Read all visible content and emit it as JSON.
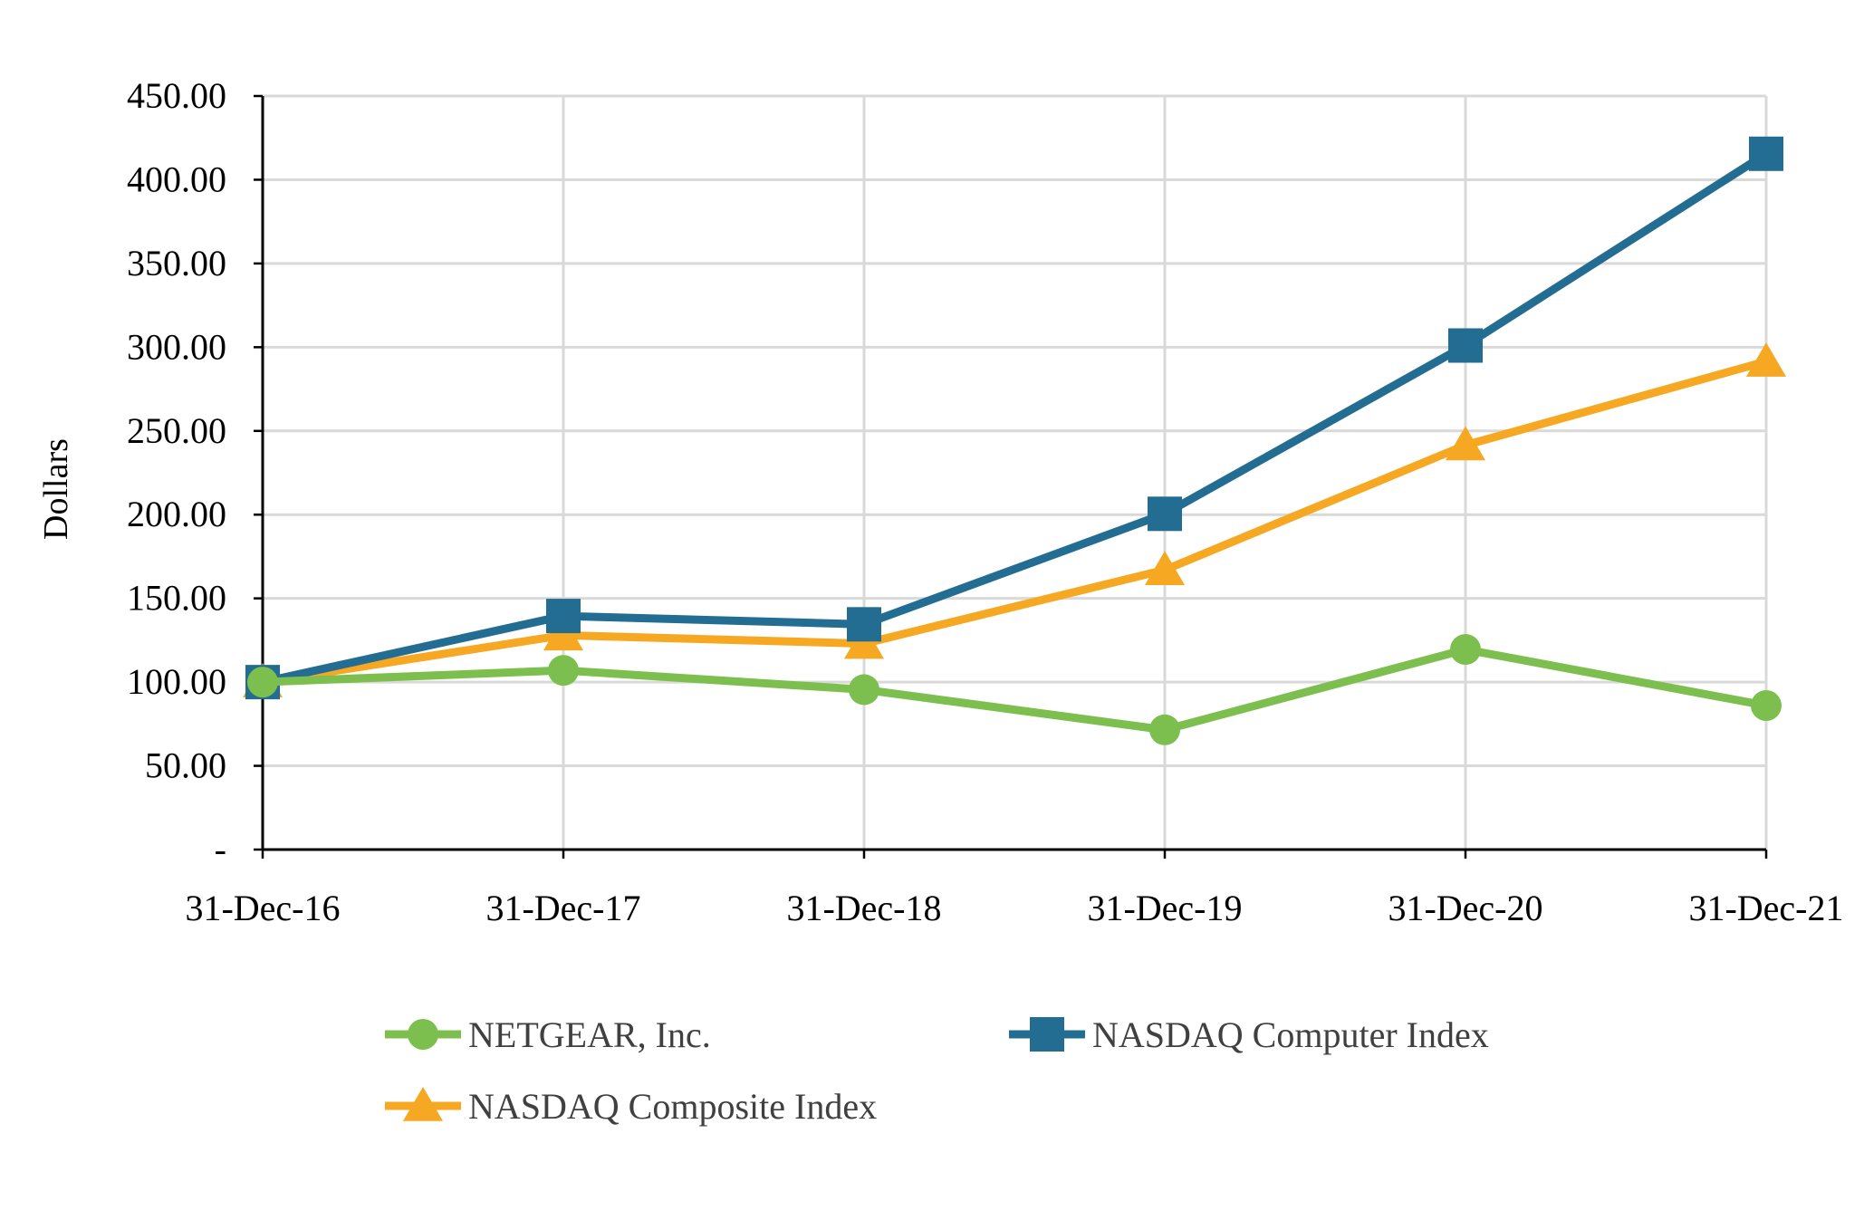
{
  "chart_data": {
    "type": "line",
    "title": "",
    "xlabel": "",
    "ylabel": "Dollars",
    "ylim": [
      0,
      450
    ],
    "y_tick_step": 50,
    "y_tick_labels": [
      "-",
      "50.00",
      "100.00",
      "150.00",
      "200.00",
      "250.00",
      "300.00",
      "350.00",
      "400.00",
      "450.00"
    ],
    "categories": [
      "31-Dec-16",
      "31-Dec-17",
      "31-Dec-18",
      "31-Dec-19",
      "31-Dec-20",
      "31-Dec-21"
    ],
    "grid": true,
    "legend_position": "bottom",
    "series": [
      {
        "name": "NETGEAR, Inc.",
        "marker": "circle",
        "color": "#7dbf4e",
        "values": [
          100.0,
          107.0,
          95.5,
          71.5,
          119.5,
          86.0
        ]
      },
      {
        "name": "NASDAQ Computer Index",
        "marker": "square",
        "color": "#236d92",
        "values": [
          100.0,
          139.5,
          134.5,
          200.5,
          301.0,
          415.5
        ]
      },
      {
        "name": "NASDAQ Composite Index",
        "marker": "triangle",
        "color": "#f7a823",
        "values": [
          100.0,
          128.0,
          123.0,
          167.0,
          241.5,
          291.5
        ]
      }
    ],
    "draw_order": [
      2,
      1,
      0
    ]
  }
}
